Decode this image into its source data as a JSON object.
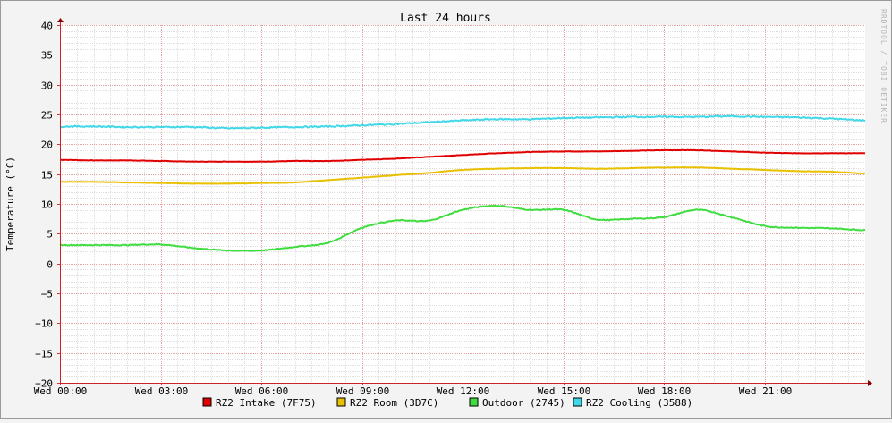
{
  "chart_data": {
    "type": "line",
    "title": "Last 24 hours",
    "xlabel": "",
    "ylabel": "Temperature (°C)",
    "watermark": "RRDTOOL / TOBI OETIKER",
    "ylim": [
      -20,
      40
    ],
    "yticks": [
      40,
      35,
      30,
      25,
      20,
      15,
      10,
      5,
      0,
      -5,
      -10,
      -15,
      -20
    ],
    "ytick_labels": [
      "40",
      "35",
      "30",
      "25",
      "20",
      "15",
      "10",
      "5",
      "0",
      "−5",
      "−10",
      "−15",
      "−20"
    ],
    "xlim": [
      0,
      24
    ],
    "xticks": [
      0,
      3,
      6,
      9,
      12,
      15,
      18,
      21
    ],
    "xtick_labels": [
      "Wed 00:00",
      "Wed 03:00",
      "Wed 06:00",
      "Wed 09:00",
      "Wed 12:00",
      "Wed 15:00",
      "Wed 18:00",
      "Wed 21:00"
    ],
    "grid": true,
    "legend_position": "bottom",
    "x": [
      0,
      1,
      2,
      3,
      4,
      5,
      6,
      7,
      8,
      9,
      10,
      11,
      12,
      13,
      14,
      15,
      16,
      17,
      18,
      19,
      20,
      21,
      22,
      23,
      24
    ],
    "series": [
      {
        "name": "RZ2 Intake (7F75)",
        "color": "#e00000",
        "values": [
          17.4,
          17.3,
          17.3,
          17.2,
          17.1,
          17.1,
          17.1,
          17.2,
          17.2,
          17.4,
          17.6,
          17.9,
          18.2,
          18.5,
          18.7,
          18.8,
          18.8,
          18.9,
          19.0,
          19.0,
          18.8,
          18.6,
          18.5,
          18.5,
          18.5
        ]
      },
      {
        "name": "RZ2 Room (3D7C)",
        "color": "#e8c000",
        "values": [
          13.7,
          13.7,
          13.6,
          13.5,
          13.4,
          13.4,
          13.5,
          13.6,
          14.0,
          14.4,
          14.8,
          15.2,
          15.7,
          15.9,
          16.0,
          16.0,
          15.9,
          16.0,
          16.1,
          16.1,
          15.9,
          15.7,
          15.5,
          15.4,
          15.1
        ]
      },
      {
        "name": "Outdoor (2745)",
        "color": "#40dd40",
        "values": [
          3.1,
          3.1,
          3.1,
          3.2,
          2.6,
          2.2,
          2.2,
          2.8,
          3.5,
          6.0,
          7.2,
          7.2,
          9.0,
          9.7,
          9.0,
          9.0,
          7.4,
          7.5,
          7.8,
          9.0,
          7.8,
          6.3,
          6.0,
          5.9,
          5.6
        ]
      },
      {
        "name": "RZ2 Cooling (3588)",
        "color": "#40d8e8",
        "values": [
          23.0,
          23.0,
          22.9,
          22.9,
          22.9,
          22.7,
          22.8,
          22.9,
          23.0,
          23.2,
          23.4,
          23.7,
          24.0,
          24.2,
          24.2,
          24.4,
          24.5,
          24.6,
          24.6,
          24.6,
          24.7,
          24.6,
          24.5,
          24.3,
          24.0
        ]
      }
    ]
  }
}
